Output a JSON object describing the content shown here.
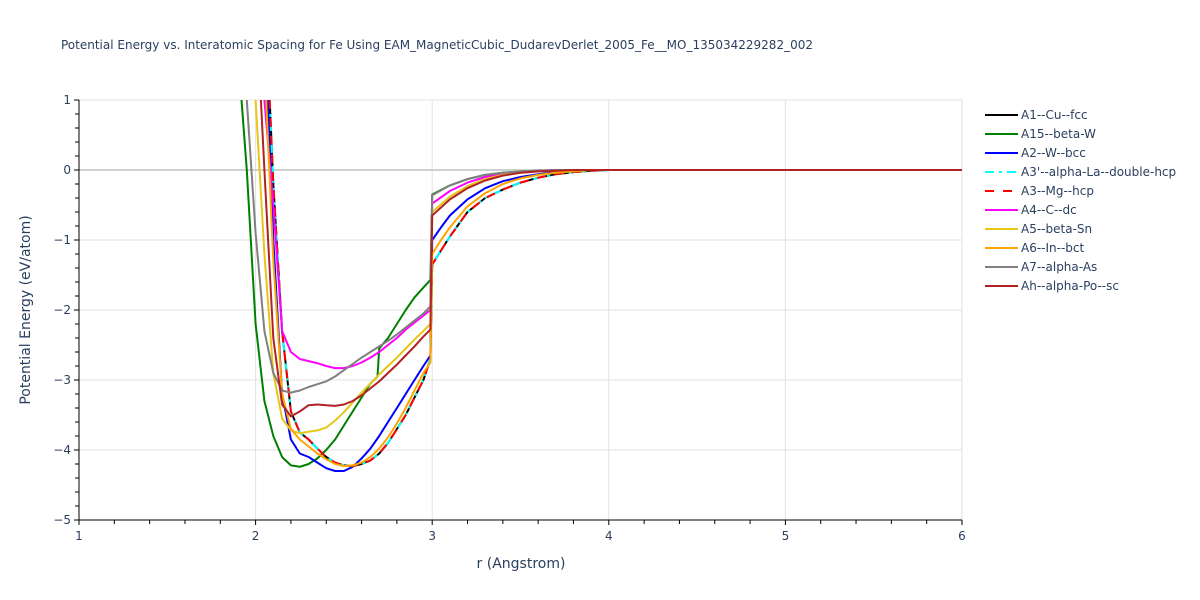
{
  "title": "Potential Energy vs. Interatomic Spacing for Fe Using EAM_MagneticCubic_DudarevDerlet_2005_Fe__MO_135034229282_002",
  "chart_data": {
    "type": "line",
    "title": "Potential Energy vs. Interatomic Spacing for Fe Using EAM_MagneticCubic_DudarevDerlet_2005_Fe__MO_135034229282_002",
    "xlabel": "r (Angstrom)",
    "ylabel": "Potential Energy (eV/atom)",
    "xlim": [
      1,
      6
    ],
    "ylim": [
      -5,
      1
    ],
    "xticks": [
      1,
      2,
      3,
      4,
      5,
      6
    ],
    "yticks": [
      1,
      0,
      -1,
      -2,
      -3,
      -4,
      -5
    ],
    "grid": true,
    "legend_position": "right",
    "series": [
      {
        "name": "A1--Cu--fcc",
        "color": "#000000",
        "dash": "solid",
        "x": [
          2.08,
          2.1,
          2.15,
          2.2,
          2.25,
          2.3,
          2.35,
          2.4,
          2.45,
          2.5,
          2.55,
          2.6,
          2.65,
          2.7,
          2.75,
          2.8,
          2.85,
          2.9,
          2.95,
          2.99,
          3.0,
          3.05,
          3.1,
          3.2,
          3.3,
          3.4,
          3.5,
          3.6,
          3.7,
          3.8,
          3.9,
          4.0,
          4.5,
          5.0,
          6.0
        ],
        "y": [
          1.0,
          -0.2,
          -2.3,
          -3.45,
          -3.75,
          -3.85,
          -3.98,
          -4.1,
          -4.18,
          -4.22,
          -4.23,
          -4.2,
          -4.15,
          -4.05,
          -3.9,
          -3.7,
          -3.5,
          -3.25,
          -3.0,
          -2.7,
          -1.35,
          -1.15,
          -0.95,
          -0.6,
          -0.4,
          -0.28,
          -0.18,
          -0.11,
          -0.06,
          -0.03,
          -0.01,
          0.0,
          0.0,
          0.0,
          0.0
        ]
      },
      {
        "name": "A15--beta-W",
        "color": "#008000",
        "dash": "solid",
        "x": [
          1.92,
          1.95,
          2.0,
          2.05,
          2.1,
          2.15,
          2.2,
          2.25,
          2.3,
          2.35,
          2.4,
          2.45,
          2.5,
          2.55,
          2.6,
          2.65,
          2.69,
          2.7,
          2.75,
          2.8,
          2.85,
          2.9,
          2.95,
          2.99,
          3.0,
          3.1,
          3.2,
          3.3,
          3.4,
          3.5,
          3.6,
          3.7,
          3.8,
          4.0,
          6.0
        ],
        "y": [
          1.0,
          0.0,
          -2.2,
          -3.3,
          -3.8,
          -4.1,
          -4.22,
          -4.24,
          -4.2,
          -4.12,
          -4.0,
          -3.85,
          -3.65,
          -3.45,
          -3.25,
          -3.05,
          -2.95,
          -2.55,
          -2.4,
          -2.2,
          -2.0,
          -1.82,
          -1.68,
          -1.57,
          -0.35,
          -0.22,
          -0.13,
          -0.07,
          -0.04,
          -0.02,
          -0.01,
          0.0,
          0.0,
          0.0,
          0.0
        ]
      },
      {
        "name": "A2--W--bcc",
        "color": "#0000ff",
        "dash": "solid",
        "x": [
          2.07,
          2.1,
          2.15,
          2.2,
          2.25,
          2.3,
          2.35,
          2.4,
          2.45,
          2.5,
          2.55,
          2.6,
          2.65,
          2.7,
          2.75,
          2.8,
          2.85,
          2.9,
          2.95,
          2.99,
          3.0,
          3.05,
          3.1,
          3.2,
          3.3,
          3.4,
          3.5,
          3.6,
          3.7,
          3.8,
          3.9,
          4.0,
          6.0
        ],
        "y": [
          1.0,
          -1.0,
          -3.2,
          -3.85,
          -4.05,
          -4.1,
          -4.18,
          -4.26,
          -4.3,
          -4.3,
          -4.24,
          -4.12,
          -3.98,
          -3.8,
          -3.6,
          -3.4,
          -3.2,
          -3.0,
          -2.8,
          -2.65,
          -1.0,
          -0.82,
          -0.65,
          -0.42,
          -0.26,
          -0.16,
          -0.1,
          -0.06,
          -0.03,
          -0.01,
          0.0,
          0.0,
          0.0
        ]
      },
      {
        "name": "A3'--alpha-La--double-hcp",
        "color": "#00ffff",
        "dash": "dashdot",
        "x": [
          2.08,
          2.1,
          2.15,
          2.2,
          2.25,
          2.3,
          2.35,
          2.4,
          2.45,
          2.5,
          2.55,
          2.6,
          2.65,
          2.7,
          2.75,
          2.8,
          2.85,
          2.9,
          2.95,
          2.99,
          3.0,
          3.05,
          3.1,
          3.2,
          3.3,
          3.4,
          3.5,
          3.6,
          3.7,
          3.8,
          3.9,
          4.0,
          6.0
        ],
        "y": [
          1.0,
          -0.2,
          -2.3,
          -3.45,
          -3.75,
          -3.85,
          -3.98,
          -4.1,
          -4.18,
          -4.22,
          -4.23,
          -4.2,
          -4.15,
          -4.05,
          -3.9,
          -3.7,
          -3.5,
          -3.25,
          -3.0,
          -2.7,
          -1.35,
          -1.15,
          -0.95,
          -0.6,
          -0.4,
          -0.28,
          -0.18,
          -0.11,
          -0.06,
          -0.03,
          -0.01,
          0.0,
          0.0
        ]
      },
      {
        "name": "A3--Mg--hcp",
        "color": "#ff0000",
        "dash": "dash",
        "x": [
          2.08,
          2.1,
          2.15,
          2.2,
          2.25,
          2.3,
          2.35,
          2.4,
          2.45,
          2.5,
          2.55,
          2.6,
          2.65,
          2.7,
          2.75,
          2.8,
          2.85,
          2.9,
          2.95,
          2.99,
          3.0,
          3.05,
          3.1,
          3.2,
          3.3,
          3.4,
          3.5,
          3.6,
          3.7,
          3.8,
          3.9,
          4.0,
          6.0
        ],
        "y": [
          1.0,
          -0.2,
          -2.3,
          -3.45,
          -3.75,
          -3.85,
          -3.98,
          -4.1,
          -4.18,
          -4.22,
          -4.23,
          -4.2,
          -4.15,
          -4.05,
          -3.9,
          -3.7,
          -3.5,
          -3.25,
          -3.0,
          -2.7,
          -1.35,
          -1.15,
          -0.95,
          -0.6,
          -0.4,
          -0.28,
          -0.18,
          -0.11,
          -0.06,
          -0.03,
          -0.01,
          0.0,
          0.0
        ]
      },
      {
        "name": "A4--C--dc",
        "color": "#ff00ff",
        "dash": "solid",
        "x": [
          2.05,
          2.1,
          2.15,
          2.2,
          2.25,
          2.3,
          2.35,
          2.4,
          2.45,
          2.5,
          2.55,
          2.6,
          2.65,
          2.7,
          2.75,
          2.8,
          2.85,
          2.9,
          2.95,
          2.99,
          3.0,
          3.1,
          3.2,
          3.3,
          3.4,
          3.5,
          3.6,
          3.7,
          3.8,
          4.0,
          6.0
        ],
        "y": [
          1.0,
          -0.5,
          -2.3,
          -2.6,
          -2.7,
          -2.73,
          -2.76,
          -2.8,
          -2.83,
          -2.83,
          -2.8,
          -2.75,
          -2.68,
          -2.6,
          -2.5,
          -2.4,
          -2.28,
          -2.18,
          -2.08,
          -2.0,
          -0.48,
          -0.3,
          -0.18,
          -0.1,
          -0.05,
          -0.03,
          -0.01,
          0.0,
          0.0,
          0.0,
          0.0
        ]
      },
      {
        "name": "A5--beta-Sn",
        "color": "#e6c619",
        "dash": "solid",
        "x": [
          2.0,
          2.05,
          2.1,
          2.15,
          2.2,
          2.25,
          2.3,
          2.35,
          2.4,
          2.45,
          2.5,
          2.55,
          2.6,
          2.65,
          2.7,
          2.75,
          2.8,
          2.85,
          2.9,
          2.95,
          2.99,
          3.0,
          3.1,
          3.2,
          3.3,
          3.4,
          3.5,
          3.6,
          3.7,
          3.8,
          4.0,
          6.0
        ],
        "y": [
          1.0,
          -1.2,
          -2.9,
          -3.55,
          -3.72,
          -3.76,
          -3.74,
          -3.72,
          -3.68,
          -3.58,
          -3.46,
          -3.32,
          -3.18,
          -3.05,
          -2.92,
          -2.8,
          -2.68,
          -2.55,
          -2.42,
          -2.3,
          -2.2,
          -0.6,
          -0.38,
          -0.23,
          -0.13,
          -0.07,
          -0.04,
          -0.02,
          -0.01,
          0.0,
          0.0,
          0.0
        ]
      },
      {
        "name": "A6--In--bct",
        "color": "#ffa500",
        "dash": "solid",
        "x": [
          2.06,
          2.1,
          2.15,
          2.2,
          2.25,
          2.3,
          2.35,
          2.4,
          2.45,
          2.5,
          2.55,
          2.6,
          2.65,
          2.7,
          2.75,
          2.8,
          2.85,
          2.9,
          2.95,
          2.99,
          3.0,
          3.05,
          3.1,
          3.2,
          3.3,
          3.4,
          3.5,
          3.6,
          3.7,
          3.8,
          3.9,
          4.0,
          6.0
        ],
        "y": [
          1.0,
          -1.3,
          -3.2,
          -3.7,
          -3.85,
          -3.95,
          -4.05,
          -4.13,
          -4.2,
          -4.23,
          -4.22,
          -4.18,
          -4.1,
          -3.98,
          -3.82,
          -3.62,
          -3.4,
          -3.15,
          -2.9,
          -2.75,
          -1.2,
          -1.0,
          -0.82,
          -0.52,
          -0.33,
          -0.2,
          -0.12,
          -0.07,
          -0.04,
          -0.02,
          0.0,
          0.0,
          0.0
        ]
      },
      {
        "name": "A7--alpha-As",
        "color": "#808080",
        "dash": "solid",
        "x": [
          1.95,
          2.0,
          2.05,
          2.1,
          2.15,
          2.2,
          2.25,
          2.3,
          2.35,
          2.4,
          2.45,
          2.5,
          2.55,
          2.6,
          2.65,
          2.7,
          2.75,
          2.8,
          2.85,
          2.9,
          2.95,
          2.99,
          3.0,
          3.1,
          3.2,
          3.3,
          3.4,
          3.5,
          3.6,
          3.7,
          3.8,
          4.0,
          6.0
        ],
        "y": [
          1.0,
          -0.9,
          -2.3,
          -2.9,
          -3.15,
          -3.18,
          -3.15,
          -3.1,
          -3.06,
          -3.02,
          -2.95,
          -2.86,
          -2.77,
          -2.68,
          -2.6,
          -2.52,
          -2.44,
          -2.35,
          -2.25,
          -2.15,
          -2.05,
          -1.95,
          -0.36,
          -0.22,
          -0.13,
          -0.07,
          -0.04,
          -0.02,
          -0.01,
          0.0,
          0.0,
          0.0,
          0.0
        ]
      },
      {
        "name": "Ah--alpha-Po--sc",
        "color": "#b22222",
        "dash": "solid",
        "x": [
          2.03,
          2.05,
          2.1,
          2.15,
          2.2,
          2.25,
          2.3,
          2.35,
          2.4,
          2.45,
          2.5,
          2.55,
          2.6,
          2.65,
          2.7,
          2.75,
          2.8,
          2.85,
          2.9,
          2.95,
          2.99,
          3.0,
          3.1,
          3.2,
          3.3,
          3.4,
          3.5,
          3.6,
          3.7,
          3.8,
          4.0,
          6.0
        ],
        "y": [
          1.0,
          0.0,
          -2.4,
          -3.35,
          -3.52,
          -3.45,
          -3.36,
          -3.35,
          -3.36,
          -3.37,
          -3.35,
          -3.3,
          -3.22,
          -3.12,
          -3.02,
          -2.9,
          -2.78,
          -2.65,
          -2.52,
          -2.38,
          -2.28,
          -0.65,
          -0.42,
          -0.26,
          -0.15,
          -0.08,
          -0.04,
          -0.02,
          -0.01,
          0.0,
          0.0,
          0.0
        ]
      }
    ]
  },
  "axes": {
    "xlabel": "r (Angstrom)",
    "ylabel": "Potential Energy (eV/atom)",
    "xticks": [
      "1",
      "2",
      "3",
      "4",
      "5",
      "6"
    ],
    "yticks": [
      "1",
      "0",
      "−1",
      "−2",
      "−3",
      "−4",
      "−5"
    ]
  },
  "legend": [
    {
      "label": "A1--Cu--fcc",
      "color": "#000000",
      "dash": "solid"
    },
    {
      "label": "A15--beta-W",
      "color": "#008000",
      "dash": "solid"
    },
    {
      "label": "A2--W--bcc",
      "color": "#0000ff",
      "dash": "solid"
    },
    {
      "label": "A3'--alpha-La--double-hcp",
      "color": "#00ffff",
      "dash": "dashdot"
    },
    {
      "label": "A3--Mg--hcp",
      "color": "#ff0000",
      "dash": "dash"
    },
    {
      "label": "A4--C--dc",
      "color": "#ff00ff",
      "dash": "solid"
    },
    {
      "label": "A5--beta-Sn",
      "color": "#e6c619",
      "dash": "solid"
    },
    {
      "label": "A6--In--bct",
      "color": "#ffa500",
      "dash": "solid"
    },
    {
      "label": "A7--alpha-As",
      "color": "#808080",
      "dash": "solid"
    },
    {
      "label": "Ah--alpha-Po--sc",
      "color": "#b22222",
      "dash": "solid"
    }
  ]
}
